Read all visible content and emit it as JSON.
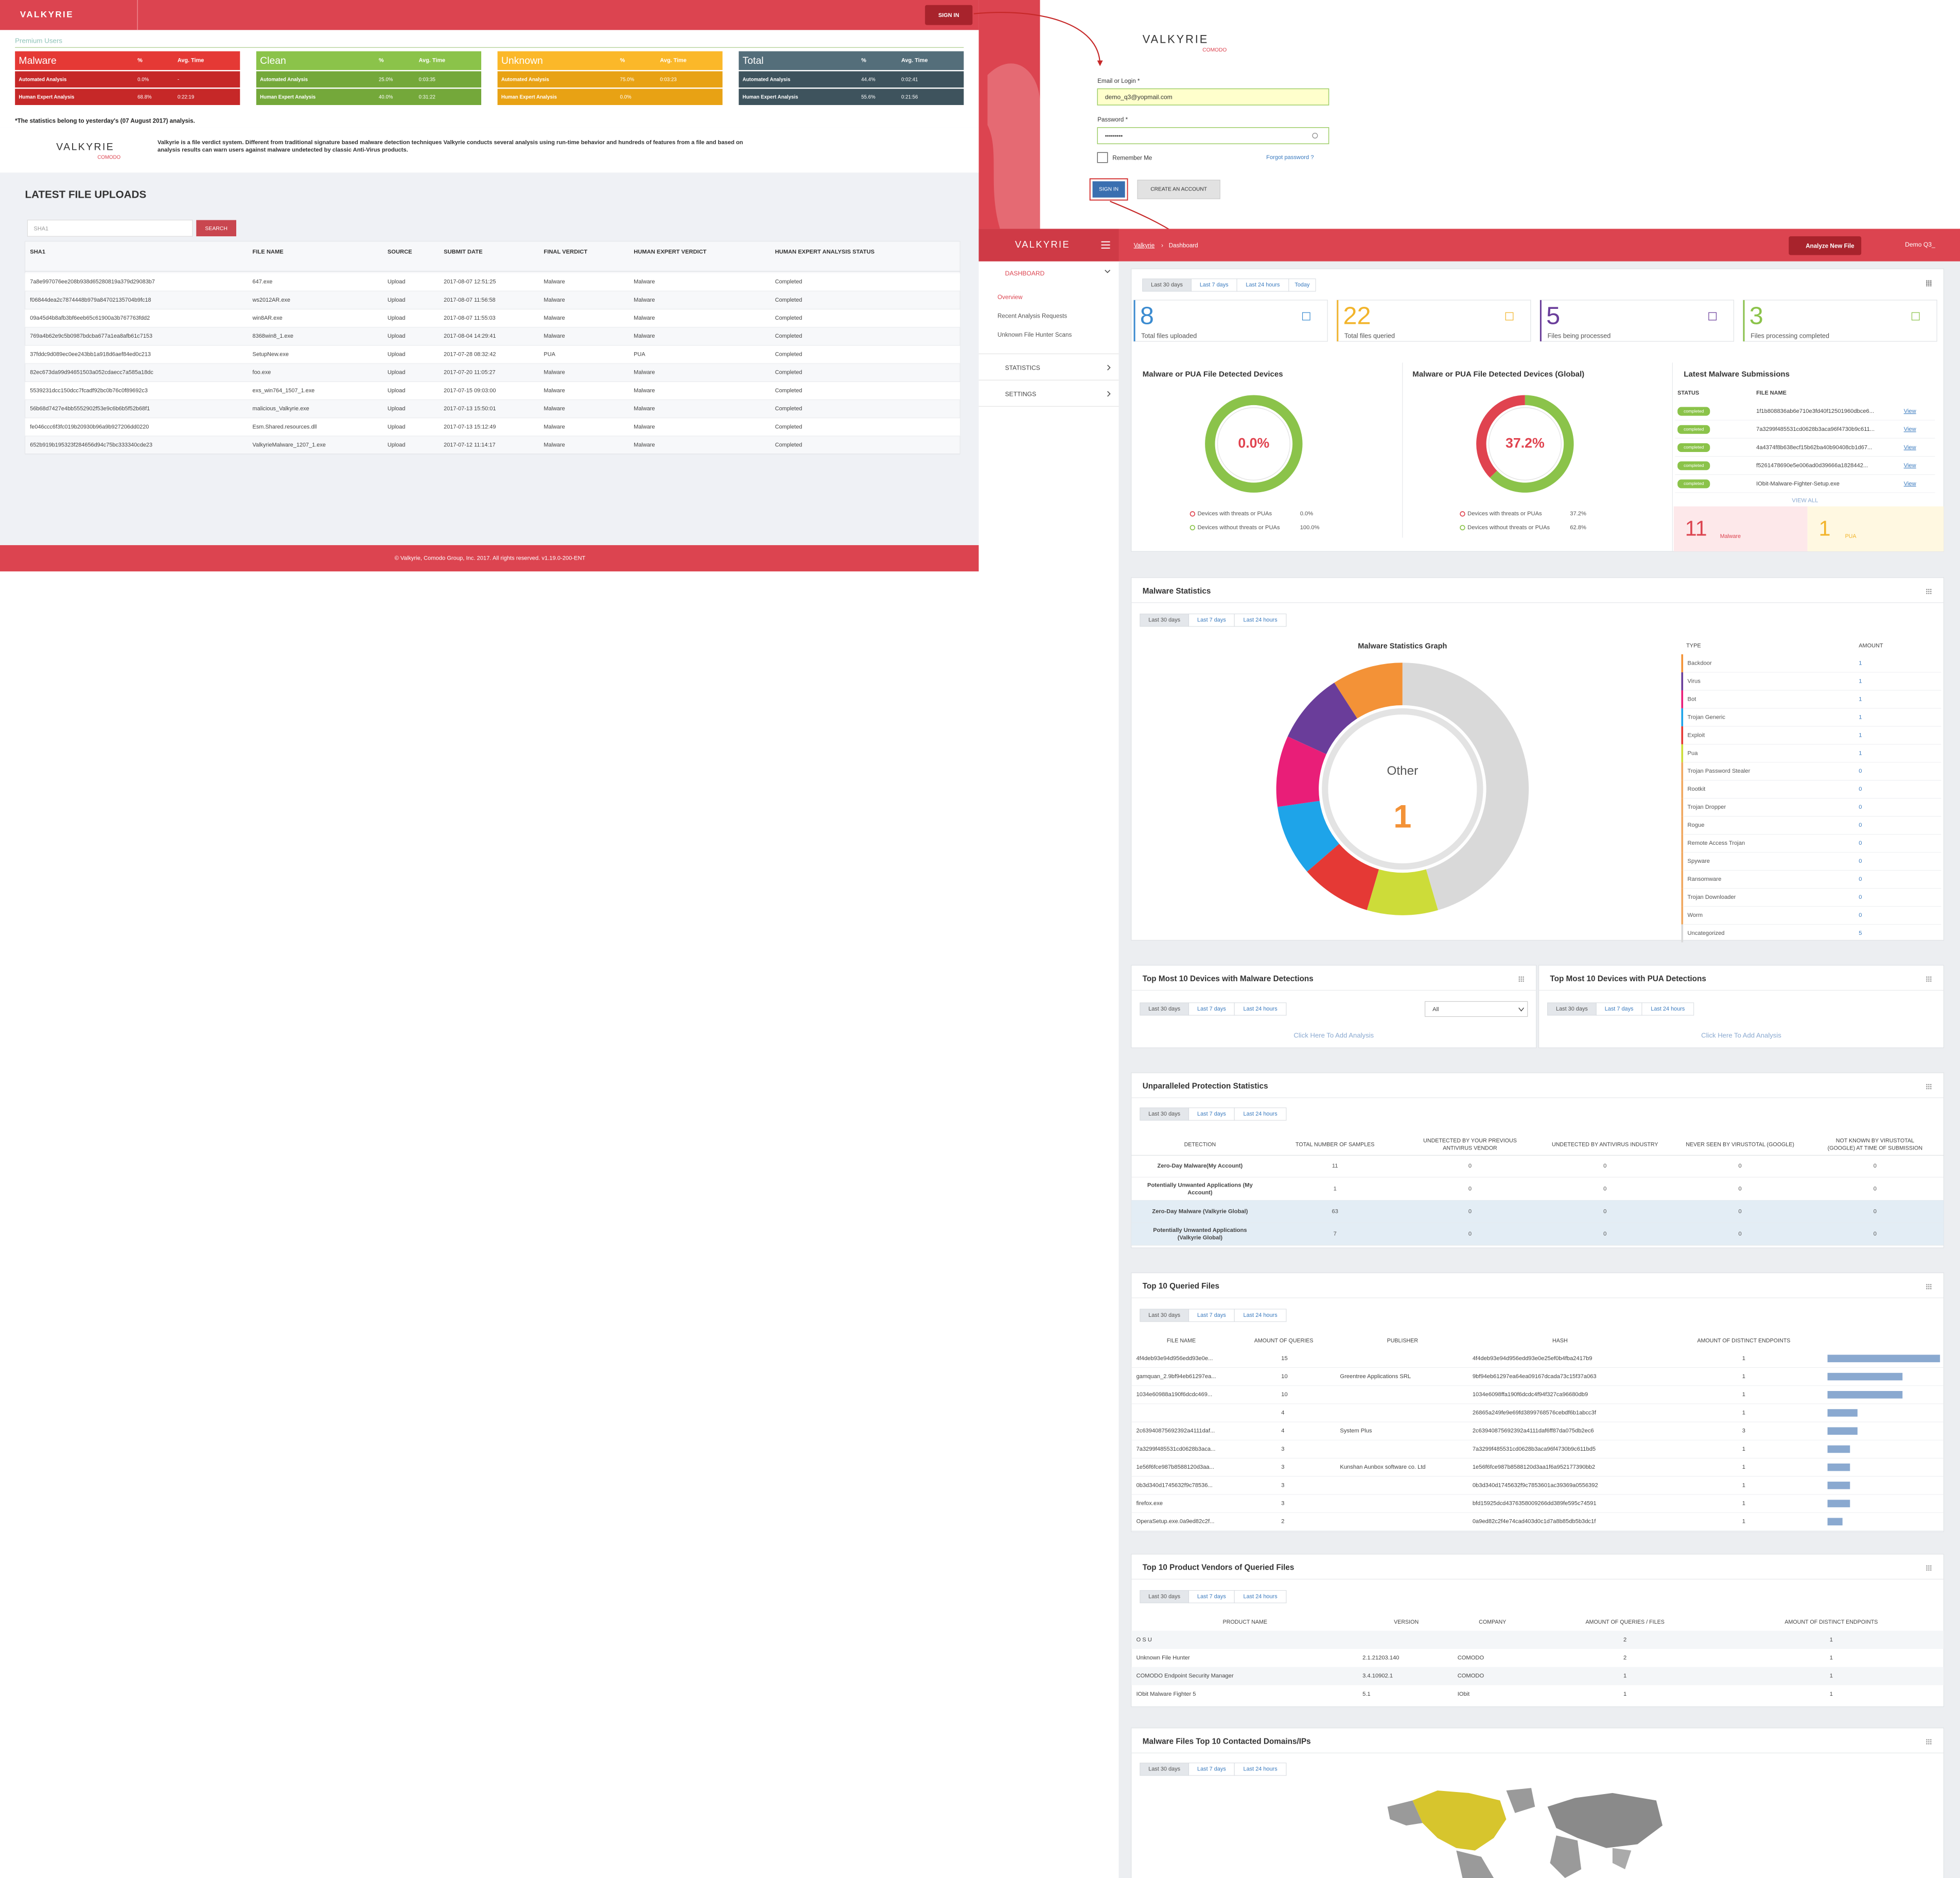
{
  "public_page": {
    "logo": "VALKYRIE",
    "sign_in": "SIGN IN",
    "premium_label": "Premium Users",
    "cards": [
      {
        "title": "Malware",
        "color": "#e53935",
        "row_color": "#c62828",
        "pct_header": "%",
        "time_header": "Avg. Time",
        "rows": [
          {
            "label": "Automated Analysis",
            "pct": "0.0%",
            "time": "-"
          },
          {
            "label": "Human Expert Analysis",
            "pct": "68.8%",
            "time": "0:22:19"
          }
        ]
      },
      {
        "title": "Clean",
        "color": "#8bc34a",
        "row_color": "#74a83a",
        "pct_header": "%",
        "time_header": "Avg. Time",
        "rows": [
          {
            "label": "Automated Analysis",
            "pct": "25.0%",
            "time": "0:03:35"
          },
          {
            "label": "Human Expert Analysis",
            "pct": "40.0%",
            "time": "0:31:22"
          }
        ]
      },
      {
        "title": "Unknown",
        "color": "#fbb829",
        "row_color": "#e8a214",
        "pct_header": "%",
        "time_header": "Avg. Time",
        "rows": [
          {
            "label": "Automated Analysis",
            "pct": "75.0%",
            "time": "0:03:23"
          },
          {
            "label": "Human Expert Analysis",
            "pct": "0.0%",
            "time": null
          }
        ]
      },
      {
        "title": "Total",
        "color": "#546e7a",
        "row_color": "#3e535d",
        "pct_header": "%",
        "time_header": "Avg. Time",
        "rows": [
          {
            "label": "Automated Analysis",
            "pct": "44.4%",
            "time": "0:02:41"
          },
          {
            "label": "Human Expert Analysis",
            "pct": "55.6%",
            "time": "0:21:56"
          }
        ]
      }
    ],
    "note": "*The statistics belong to yesterday's (07 August 2017) analysis.",
    "about": {
      "logo": "VALKYRIE",
      "logo_sub": "COMODO",
      "lines": [
        "Valkyrie is a file verdict system. Different from traditional signature based malware detection techniques Valkyrie conducts several analysis using run-time behavior and hundreds of features from a file and based on",
        "analysis results can warn users against malware undetected by classic Anti-Virus products."
      ]
    },
    "uploads": {
      "title": "LATEST FILE UPLOADS",
      "search_placeholder": "SHA1",
      "search_button": "SEARCH",
      "columns": [
        "SHA1",
        "FILE NAME",
        "SOURCE",
        "SUBMIT DATE",
        "FINAL VERDICT",
        "HUMAN EXPERT VERDICT",
        "HUMAN EXPERT ANALYSIS STATUS"
      ],
      "rows": [
        [
          "7a8e997076ee208b938d65280819a379d29083b7",
          "647.exe",
          "Upload",
          "2017-08-07 12:51:25",
          "Malware",
          "Malware",
          "Completed"
        ],
        [
          "f06844dea2c7874448b979a84702135704b9fc18",
          "ws2012AR.exe",
          "Upload",
          "2017-08-07 11:56:58",
          "Malware",
          "Malware",
          "Completed"
        ],
        [
          "09a45d4b8afb3bf6eeb65c61900a3b767763fdd2",
          "win8AR.exe",
          "Upload",
          "2017-08-07 11:55:03",
          "Malware",
          "Malware",
          "Completed"
        ],
        [
          "769a4b62e9c5b0987bdcba677a1ea8afb61c7153",
          "8368win8_1.exe",
          "Upload",
          "2017-08-04 14:29:41",
          "Malware",
          "Malware",
          "Completed"
        ],
        [
          "37fddc9d089ec0ee243bb1a918d6aef84ed0c213",
          "SetupNew.exe",
          "Upload",
          "2017-07-28 08:32:42",
          "PUA",
          "PUA",
          "Completed"
        ],
        [
          "82ec673da99d94651503a052cdaecc7a585a18dc",
          "foo.exe",
          "Upload",
          "2017-07-20 11:05:27",
          "Malware",
          "Malware",
          "Completed"
        ],
        [
          "5539231dcc150dcc7fcadf92bc0b76c0f89692c3",
          "exs_win764_1507_1.exe",
          "Upload",
          "2017-07-15 09:03:00",
          "Malware",
          "Malware",
          "Completed"
        ],
        [
          "56b68d7427e4bb5552902f53e9c6b6b5f52b68f1",
          "malicious_Valkyrie.exe",
          "Upload",
          "2017-07-13 15:50:01",
          "Malware",
          "Malware",
          "Completed"
        ],
        [
          "fe046ccc6f3fc019b20930b96a9b927206dd0220",
          "Esm.Shared.resources.dll",
          "Upload",
          "2017-07-13 15:12:49",
          "Malware",
          "Malware",
          "Completed"
        ],
        [
          "652b919b195323f284656d94c75bc333340cde23",
          "ValkyrieMalware_1207_1.exe",
          "Upload",
          "2017-07-12 11:14:17",
          "Malware",
          "Malware",
          "Completed"
        ]
      ]
    },
    "footer": "© Valkyrie, Comodo Group, Inc. 2017. All rights reserved. v1.19.0-200-ENT"
  },
  "login_page": {
    "logo": "VALKYRIE",
    "logo_sub": "COMODO",
    "email_label": "Email or Login *",
    "email_value": "demo_q3@yopmail.com",
    "password_label": "Password *",
    "password_value": "•••••••••",
    "remember": "Remember Me",
    "forgot": "Forgot password ?",
    "sign_in": "SIGN IN",
    "create": "CREATE AN ACCOUNT"
  },
  "dashboard": {
    "logo": "VALKYRIE",
    "breadcrumb": [
      "Valkyrie",
      "Dashboard"
    ],
    "analyze_button": "Analyze New File",
    "user": "Demo Q3_",
    "menu": [
      {
        "label": "DASHBOARD",
        "items": [
          "Overview",
          "Recent Analysis Requests",
          "Unknown File Hunter Scans"
        ]
      },
      {
        "label": "STATISTICS"
      },
      {
        "label": "SETTINGS"
      }
    ],
    "overview": {
      "tabs": [
        "Last 30 days",
        "Last 7 days",
        "Last 24 hours",
        "Today"
      ],
      "stats": [
        {
          "value": 8,
          "label": "Total files uploaded",
          "color": "#3b8bd0"
        },
        {
          "value": 22,
          "label": "Total files queried",
          "color": "#f2b42b"
        },
        {
          "value": 5,
          "label": "Files being processed",
          "color": "#6a3d9a"
        },
        {
          "value": 3,
          "label": "Files processing completed",
          "color": "#8bc34a"
        }
      ],
      "device_charts": [
        {
          "type": "donut",
          "title": "Malware or PUA File Detected Devices",
          "categories": [
            "Devices with threats or PUAs",
            "Devices without threats or PUAs"
          ],
          "values": [
            0.0,
            100.0
          ],
          "value_labels": [
            "0.0%",
            "100.0%"
          ],
          "colors": [
            "#e0434f",
            "#8bc34a"
          ]
        },
        {
          "type": "donut",
          "title": "Malware or PUA File Detected Devices (Global)",
          "categories": [
            "Devices with threats or PUAs",
            "Devices without threats or PUAs"
          ],
          "values": [
            37.2,
            62.8
          ],
          "value_labels": [
            "37.2%",
            "62.8%"
          ],
          "colors": [
            "#e0434f",
            "#8bc34a"
          ]
        }
      ],
      "latest": {
        "title": "Latest Malware Submissions",
        "columns": [
          "STATUS",
          "FILE NAME"
        ],
        "rows": [
          {
            "status": "completed",
            "file": "1f1b808836ab6e710e3fd40f12501960dbce6...",
            "link": "View"
          },
          {
            "status": "completed",
            "file": "7a3299f485531cd0628b3aca96f4730b9c611...",
            "link": "View"
          },
          {
            "status": "completed",
            "file": "4a4374f8b638ecf15b62ba40b90408cb1d67...",
            "link": "View"
          },
          {
            "status": "completed",
            "file": "f5261478690e5e006ad0d39666a1828442...",
            "link": "View"
          },
          {
            "status": "completed",
            "file": "IObit-Malware-Fighter-Setup.exe",
            "link": "View"
          }
        ],
        "view_all": "VIEW ALL",
        "counts": [
          {
            "value": 11,
            "label": "Malware"
          },
          {
            "value": 1,
            "label": "PUA"
          }
        ]
      }
    },
    "malware_stats": {
      "title": "Malware Statistics",
      "tabs": [
        "Last 30 days",
        "Last 7 days",
        "Last 24 hours"
      ],
      "chart": {
        "type": "donut",
        "title": "Malware Statistics Graph",
        "center_label": "Other",
        "center_value": 1,
        "columns": [
          "TYPE",
          "AMOUNT"
        ],
        "categories": [
          "Backdoor",
          "Virus",
          "Bot",
          "Trojan Generic",
          "Exploit",
          "Pua",
          "Trojan Password Stealer",
          "Rootkit",
          "Trojan Dropper",
          "Rogue",
          "Remote Access Trojan",
          "Spyware",
          "Ransomware",
          "Trojan Downloader",
          "Worm",
          "Uncategorized"
        ],
        "values": [
          1,
          1,
          1,
          1,
          1,
          1,
          0,
          0,
          0,
          0,
          0,
          0,
          0,
          0,
          0,
          5
        ],
        "colors": [
          "#f39237",
          "#6a3d9a",
          "#e91e78",
          "#1ea4e9",
          "#e53935",
          "#cddc39",
          "#f0a860",
          "#f0a860",
          "#f0a860",
          "#f0a860",
          "#f0a860",
          "#f0a860",
          "#f0a860",
          "#f0a860",
          "#f0a860",
          "#d9d9d9"
        ]
      }
    },
    "devices": [
      {
        "title": "Top Most 10 Devices with Malware Detections",
        "tabs": [
          "Last 30 days",
          "Last 7 days",
          "Last 24 hours"
        ],
        "filter": "All",
        "link": "Click Here To Add Analysis"
      },
      {
        "title": "Top Most 10 Devices with PUA Detections",
        "tabs": [
          "Last 30 days",
          "Last 7 days",
          "Last 24 hours"
        ],
        "link": "Click Here To Add Analysis"
      }
    ],
    "protection": {
      "title": "Unparalleled Protection Statistics",
      "tabs": [
        "Last 30 days",
        "Last 7 days",
        "Last 24 hours"
      ],
      "columns": [
        [
          "DETECTION"
        ],
        [
          "TOTAL NUMBER OF SAMPLES"
        ],
        [
          "UNDETECTED BY YOUR PREVIOUS",
          "ANTIVIRUS VENDOR"
        ],
        [
          "UNDETECTED BY ANTIVIRUS INDUSTRY"
        ],
        [
          "NEVER SEEN BY VIRUSTOTAL (GOOGLE)"
        ],
        [
          "NOT KNOWN BY VIRUSTOTAL",
          "(GOOGLE) AT TIME OF SUBMISSION"
        ]
      ],
      "rows": [
        {
          "label": [
            "Zero-Day Malware(My Account)"
          ],
          "values": [
            11,
            0,
            0,
            0,
            0
          ]
        },
        {
          "label": [
            "Potentially Unwanted Applications (My",
            "Account)"
          ],
          "values": [
            1,
            0,
            0,
            0,
            0
          ]
        },
        {
          "label": [
            "Zero-Day Malware (Valkyrie Global)"
          ],
          "values": [
            63,
            0,
            0,
            0,
            0
          ]
        },
        {
          "label": [
            "Potentially Unwanted Applications",
            "(Valkyrie Global)"
          ],
          "values": [
            7,
            0,
            0,
            0,
            0
          ]
        }
      ]
    },
    "queried": {
      "title": "Top 10 Queried Files",
      "tabs": [
        "Last 30 days",
        "Last 7 days",
        "Last 24 hours"
      ],
      "columns": [
        "FILE NAME",
        "AMOUNT OF QUERIES",
        "PUBLISHER",
        "HASH",
        "AMOUNT OF DISTINCT ENDPOINTS"
      ],
      "rows": [
        {
          "file": "4f4deb93e94d956edd93e0e...",
          "queries": 15,
          "publisher": null,
          "hash": "4f4deb93e94d956edd93e0e25ef0b4fba2417b9",
          "endpoints": 1
        },
        {
          "file": "gamquan_2.9bf94eb61297ea...",
          "queries": 10,
          "publisher": "Greentree Applications SRL",
          "hash": "9bf94eb61297ea64ea09167dcada73c15f37a063",
          "endpoints": 1
        },
        {
          "file": "1034e60988a190f6dcdc469...",
          "queries": 10,
          "publisher": null,
          "hash": "1034e6098ffa190f6dcdc4f94f327ca96680db9",
          "endpoints": 1
        },
        {
          "file": null,
          "queries": 4,
          "publisher": null,
          "hash": "26865a249fe9e69fd3899768576cebdf6b1abcc3f",
          "endpoints": 1
        },
        {
          "file": "2c63940875692392a4111daf...",
          "queries": 4,
          "publisher": "System Plus",
          "hash": "2c63940875692392a4111daf6ff87da075db2ec6",
          "endpoints": 3
        },
        {
          "file": "7a3299f485531cd0628b3aca...",
          "queries": 3,
          "publisher": null,
          "hash": "7a3299f485531cd0628b3aca96f4730b9c611bd5",
          "endpoints": 1
        },
        {
          "file": "1e56f6fce987b8588120d3aa...",
          "queries": 3,
          "publisher": "Kunshan Aunbox software co. Ltd",
          "hash": "1e56f6fce987b8588120d3aa1f6a952177390bb2",
          "endpoints": 1
        },
        {
          "file": "0b3d340d1745632f9c78536...",
          "queries": 3,
          "publisher": null,
          "hash": "0b3d340d1745632f9c7853601ac39369a0556392",
          "endpoints": 1
        },
        {
          "file": "firefox.exe",
          "queries": 3,
          "publisher": null,
          "hash": "bfd15925dcd4376358009266dd389fe595c74591",
          "endpoints": 1
        },
        {
          "file": "OperaSetup.exe.0a9ed82c2f...",
          "queries": 2,
          "publisher": null,
          "hash": "0a9ed82c2f4e74cad403d0c1d7a8b85db5b3dc1f",
          "endpoints": 1
        }
      ],
      "bar_color": "#8aa9d0"
    },
    "vendors": {
      "title": "Top 10 Product Vendors of Queried Files",
      "tabs": [
        "Last 30 days",
        "Last 7 days",
        "Last 24 hours"
      ],
      "columns": [
        "PRODUCT NAME",
        "VERSION",
        "COMPANY",
        "AMOUNT OF QUERIES / FILES",
        "AMOUNT OF DISTINCT ENDPOINTS"
      ],
      "rows": [
        {
          "product": "O S U",
          "version": null,
          "company": null,
          "queries": 2,
          "endpoints": 1
        },
        {
          "product": "Unknown File Hunter",
          "version": "2.1.21203.140",
          "company": "COMODO",
          "queries": 2,
          "endpoints": 1
        },
        {
          "product": "COMODO Endpoint Security Manager",
          "version": "3.4.10902.1",
          "company": "COMODO",
          "queries": 1,
          "endpoints": 1
        },
        {
          "product": "IObit Malware Fighter 5",
          "version": "5.1",
          "company": "IObit",
          "queries": 1,
          "endpoints": 1
        }
      ]
    },
    "domains": {
      "title": "Malware Files Top 10 Contacted Domains/IPs",
      "tabs": [
        "Last 30 days",
        "Last 7 days",
        "Last 24 hours"
      ]
    }
  }
}
